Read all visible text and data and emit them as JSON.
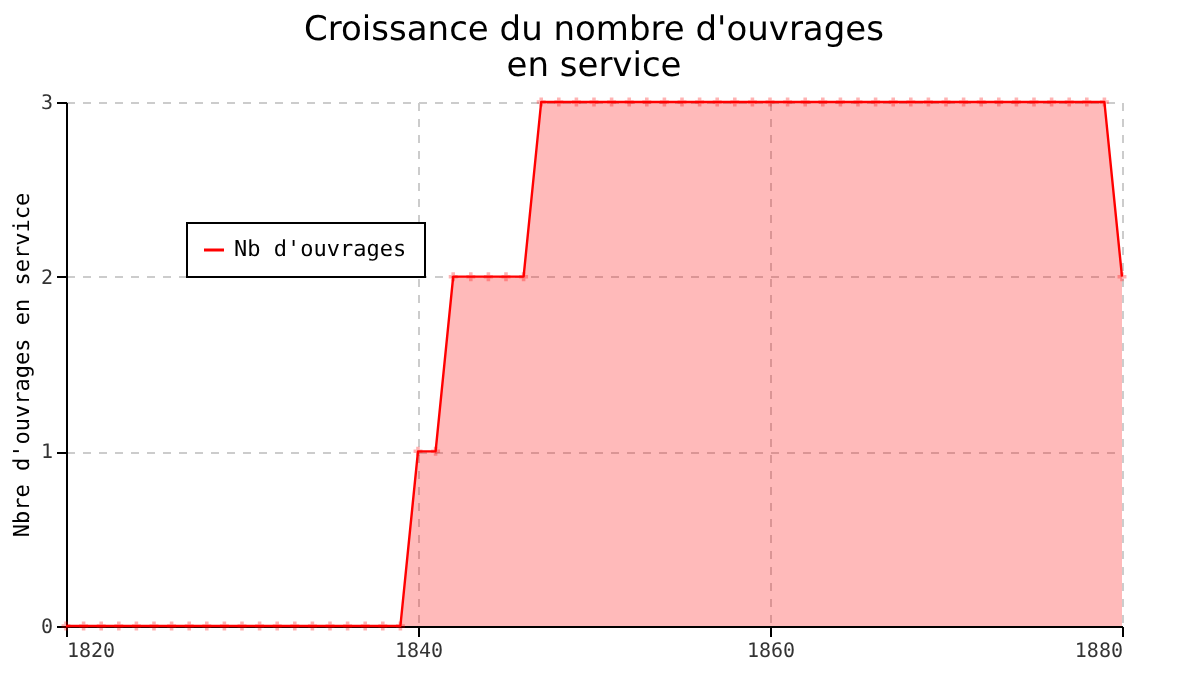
{
  "chart_data": {
    "type": "area",
    "title": "Croissance du nombre d'ouvrages\nen service",
    "ylabel": "Nbre d'ouvrages en service",
    "x": [
      1820,
      1821,
      1822,
      1823,
      1824,
      1825,
      1826,
      1827,
      1828,
      1829,
      1830,
      1831,
      1832,
      1833,
      1834,
      1835,
      1836,
      1837,
      1838,
      1839,
      1840,
      1841,
      1842,
      1843,
      1844,
      1845,
      1846,
      1847,
      1848,
      1849,
      1850,
      1851,
      1852,
      1853,
      1854,
      1855,
      1856,
      1857,
      1858,
      1859,
      1860,
      1861,
      1862,
      1863,
      1864,
      1865,
      1866,
      1867,
      1868,
      1869,
      1870,
      1871,
      1872,
      1873,
      1874,
      1875,
      1876,
      1877,
      1878,
      1879,
      1880
    ],
    "series": [
      {
        "name": "Nb d'ouvrages",
        "color": "#ff0000",
        "values": [
          0,
          0,
          0,
          0,
          0,
          0,
          0,
          0,
          0,
          0,
          0,
          0,
          0,
          0,
          0,
          0,
          0,
          0,
          0,
          0,
          1,
          1,
          2,
          2,
          2,
          2,
          2,
          3,
          3,
          3,
          3,
          3,
          3,
          3,
          3,
          3,
          3,
          3,
          3,
          3,
          3,
          3,
          3,
          3,
          3,
          3,
          3,
          3,
          3,
          3,
          3,
          3,
          3,
          3,
          3,
          3,
          3,
          3,
          3,
          3,
          2
        ]
      }
    ],
    "xlim": [
      1820,
      1880
    ],
    "xticks": [
      1820,
      1840,
      1860,
      1880
    ],
    "ylim": [
      0,
      3
    ],
    "yticks": [
      0,
      1,
      2,
      3
    ],
    "grid": true,
    "legend": "top left",
    "marker": "cross"
  }
}
